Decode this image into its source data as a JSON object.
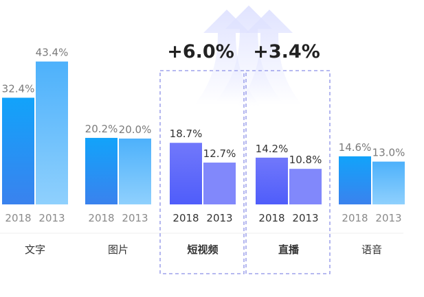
{
  "colors": {
    "blue_top": "#12a3fa",
    "blue_bottom": "#3a82ee",
    "light_top": "#4db1fb",
    "light_bottom": "#8fd0fd",
    "violet_top": "#7178fb",
    "violet_bottom": "#4f5dfa",
    "violet_light": "#8188fb",
    "dash": "#8a8fe6",
    "arrow": "#dfe2ff"
  },
  "chart_data": {
    "type": "bar",
    "series": [
      {
        "name": "2018",
        "values": [
          32.4,
          20.2,
          18.7,
          14.2,
          14.6
        ]
      },
      {
        "name": "2013",
        "values": [
          43.4,
          20.0,
          12.7,
          10.8,
          13.0
        ]
      }
    ],
    "categories": [
      "文字",
      "图片",
      "短视频",
      "直播",
      "语音"
    ],
    "value_labels": [
      [
        "32.4%",
        "43.4%"
      ],
      [
        "20.2%",
        "20.0%"
      ],
      [
        "18.7%",
        "12.7%"
      ],
      [
        "14.2%",
        "10.8%"
      ],
      [
        "14.6%",
        "13.0%"
      ]
    ],
    "highlighted": [
      false,
      false,
      true,
      true,
      false
    ],
    "deltas": [
      "",
      "",
      "+6.0%",
      "+3.4%",
      ""
    ],
    "unit": "%",
    "grid": false,
    "legend": "none"
  }
}
